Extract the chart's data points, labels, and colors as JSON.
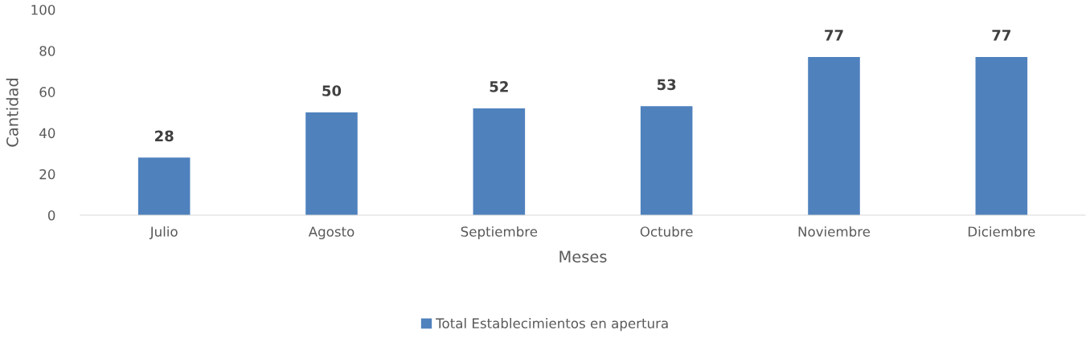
{
  "chart_data": {
    "type": "bar",
    "xlabel": "Meses",
    "ylabel": "Cantidad",
    "categories": [
      "Julio",
      "Agosto",
      "Septiembre",
      "Octubre",
      "Noviembre",
      "Diciembre"
    ],
    "series": [
      {
        "name": "Total Establecimientos en apertura",
        "color": "#4f81bd",
        "values": [
          28,
          50,
          52,
          53,
          77,
          77
        ]
      }
    ],
    "ylim": [
      0,
      100
    ],
    "yticks": [
      0,
      20,
      40,
      60,
      80,
      100
    ],
    "grid": false,
    "legend": "bottom",
    "data_labels": true
  }
}
